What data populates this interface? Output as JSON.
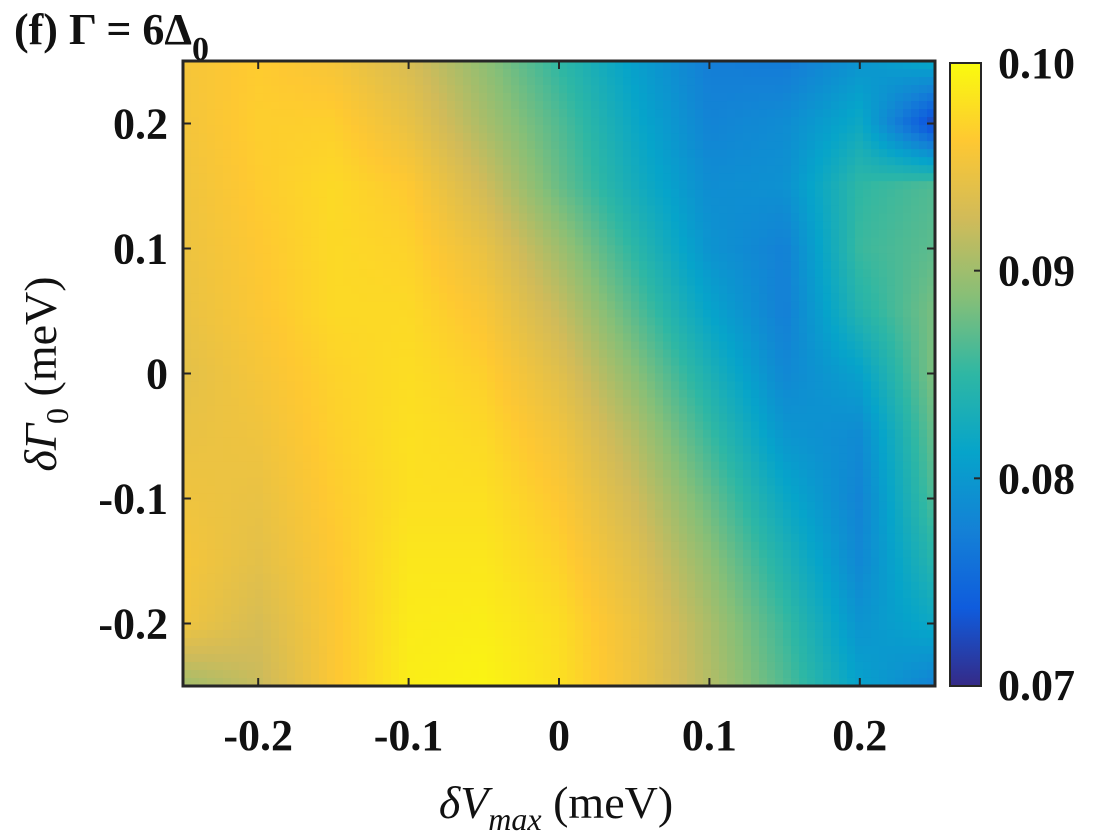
{
  "chart_data": {
    "type": "heatmap",
    "title": "(f) Γ = 6Δ0",
    "title_parts": {
      "prefix": "(f) Γ = 6Δ",
      "subscript": "0"
    },
    "xlabel": "δVmax (meV)",
    "xlabel_parts": {
      "symbol": "δV",
      "subscript": "max",
      "unit": " (meV)"
    },
    "ylabel": "δΓ0 (meV)",
    "ylabel_parts": {
      "symbol": "δΓ",
      "subscript": "0",
      "unit": " (meV)"
    },
    "xlim": [
      -0.25,
      0.25
    ],
    "ylim": [
      -0.25,
      0.25
    ],
    "x_ticks": [
      -0.2,
      -0.1,
      0,
      0.1,
      0.2
    ],
    "x_tick_labels": [
      "-0.2",
      "-0.1",
      "0",
      "0.1",
      "0.2"
    ],
    "y_ticks": [
      -0.2,
      -0.1,
      0,
      0.1,
      0.2
    ],
    "y_tick_labels": [
      "-0.2",
      "-0.1",
      "0",
      "0.1",
      "0.2"
    ],
    "colorbar": {
      "colormap": "parula",
      "range": [
        0.07,
        0.1
      ],
      "ticks": [
        0.07,
        0.08,
        0.09,
        0.1
      ],
      "tick_labels": [
        "0.07",
        "0.08",
        "0.09",
        "0.10"
      ],
      "colormap_colors": [
        "#352a87",
        "#0f5cdd",
        "#1481d6",
        "#06a4ca",
        "#2eb7a4",
        "#87bf77",
        "#d1bb59",
        "#fec832",
        "#f9fb0e"
      ]
    },
    "grid": false,
    "x": [
      -0.25,
      -0.2,
      -0.15,
      -0.1,
      -0.05,
      0,
      0.05,
      0.1,
      0.15,
      0.2,
      0.25
    ],
    "y": [
      0.25,
      0.2,
      0.15,
      0.1,
      0.05,
      0,
      -0.05,
      -0.1,
      -0.15,
      -0.2,
      -0.25
    ],
    "z": [
      [
        0.0955,
        0.0965,
        0.0955,
        0.093,
        0.0892,
        0.085,
        0.0808,
        0.0772,
        0.0768,
        0.0795,
        0.082
      ],
      [
        0.0953,
        0.0967,
        0.0968,
        0.0945,
        0.0905,
        0.0865,
        0.0818,
        0.0778,
        0.0787,
        0.082,
        0.072
      ],
      [
        0.095,
        0.0965,
        0.0975,
        0.0963,
        0.0925,
        0.0875,
        0.0828,
        0.0788,
        0.0792,
        0.085,
        0.0865
      ],
      [
        0.0948,
        0.0962,
        0.0975,
        0.097,
        0.0945,
        0.09,
        0.0848,
        0.0795,
        0.0775,
        0.0855,
        0.087
      ],
      [
        0.0945,
        0.096,
        0.0975,
        0.0975,
        0.0958,
        0.092,
        0.0868,
        0.0812,
        0.0773,
        0.0842,
        0.0882
      ],
      [
        0.094,
        0.0955,
        0.097,
        0.0978,
        0.0968,
        0.0938,
        0.089,
        0.0835,
        0.0782,
        0.081,
        0.0885
      ],
      [
        0.0945,
        0.095,
        0.0968,
        0.098,
        0.0975,
        0.0952,
        0.091,
        0.0855,
        0.0798,
        0.0785,
        0.0875
      ],
      [
        0.095,
        0.0945,
        0.0965,
        0.098,
        0.098,
        0.0962,
        0.0925,
        0.0875,
        0.0818,
        0.0778,
        0.0865
      ],
      [
        0.0955,
        0.094,
        0.0962,
        0.0985,
        0.0985,
        0.097,
        0.0938,
        0.0892,
        0.0838,
        0.0782,
        0.0845
      ],
      [
        0.095,
        0.093,
        0.096,
        0.0988,
        0.099,
        0.0978,
        0.0948,
        0.0905,
        0.0855,
        0.0795,
        0.082
      ],
      [
        0.09,
        0.092,
        0.096,
        0.099,
        0.0995,
        0.098,
        0.095,
        0.091,
        0.0865,
        0.081,
        0.0775
      ]
    ]
  }
}
